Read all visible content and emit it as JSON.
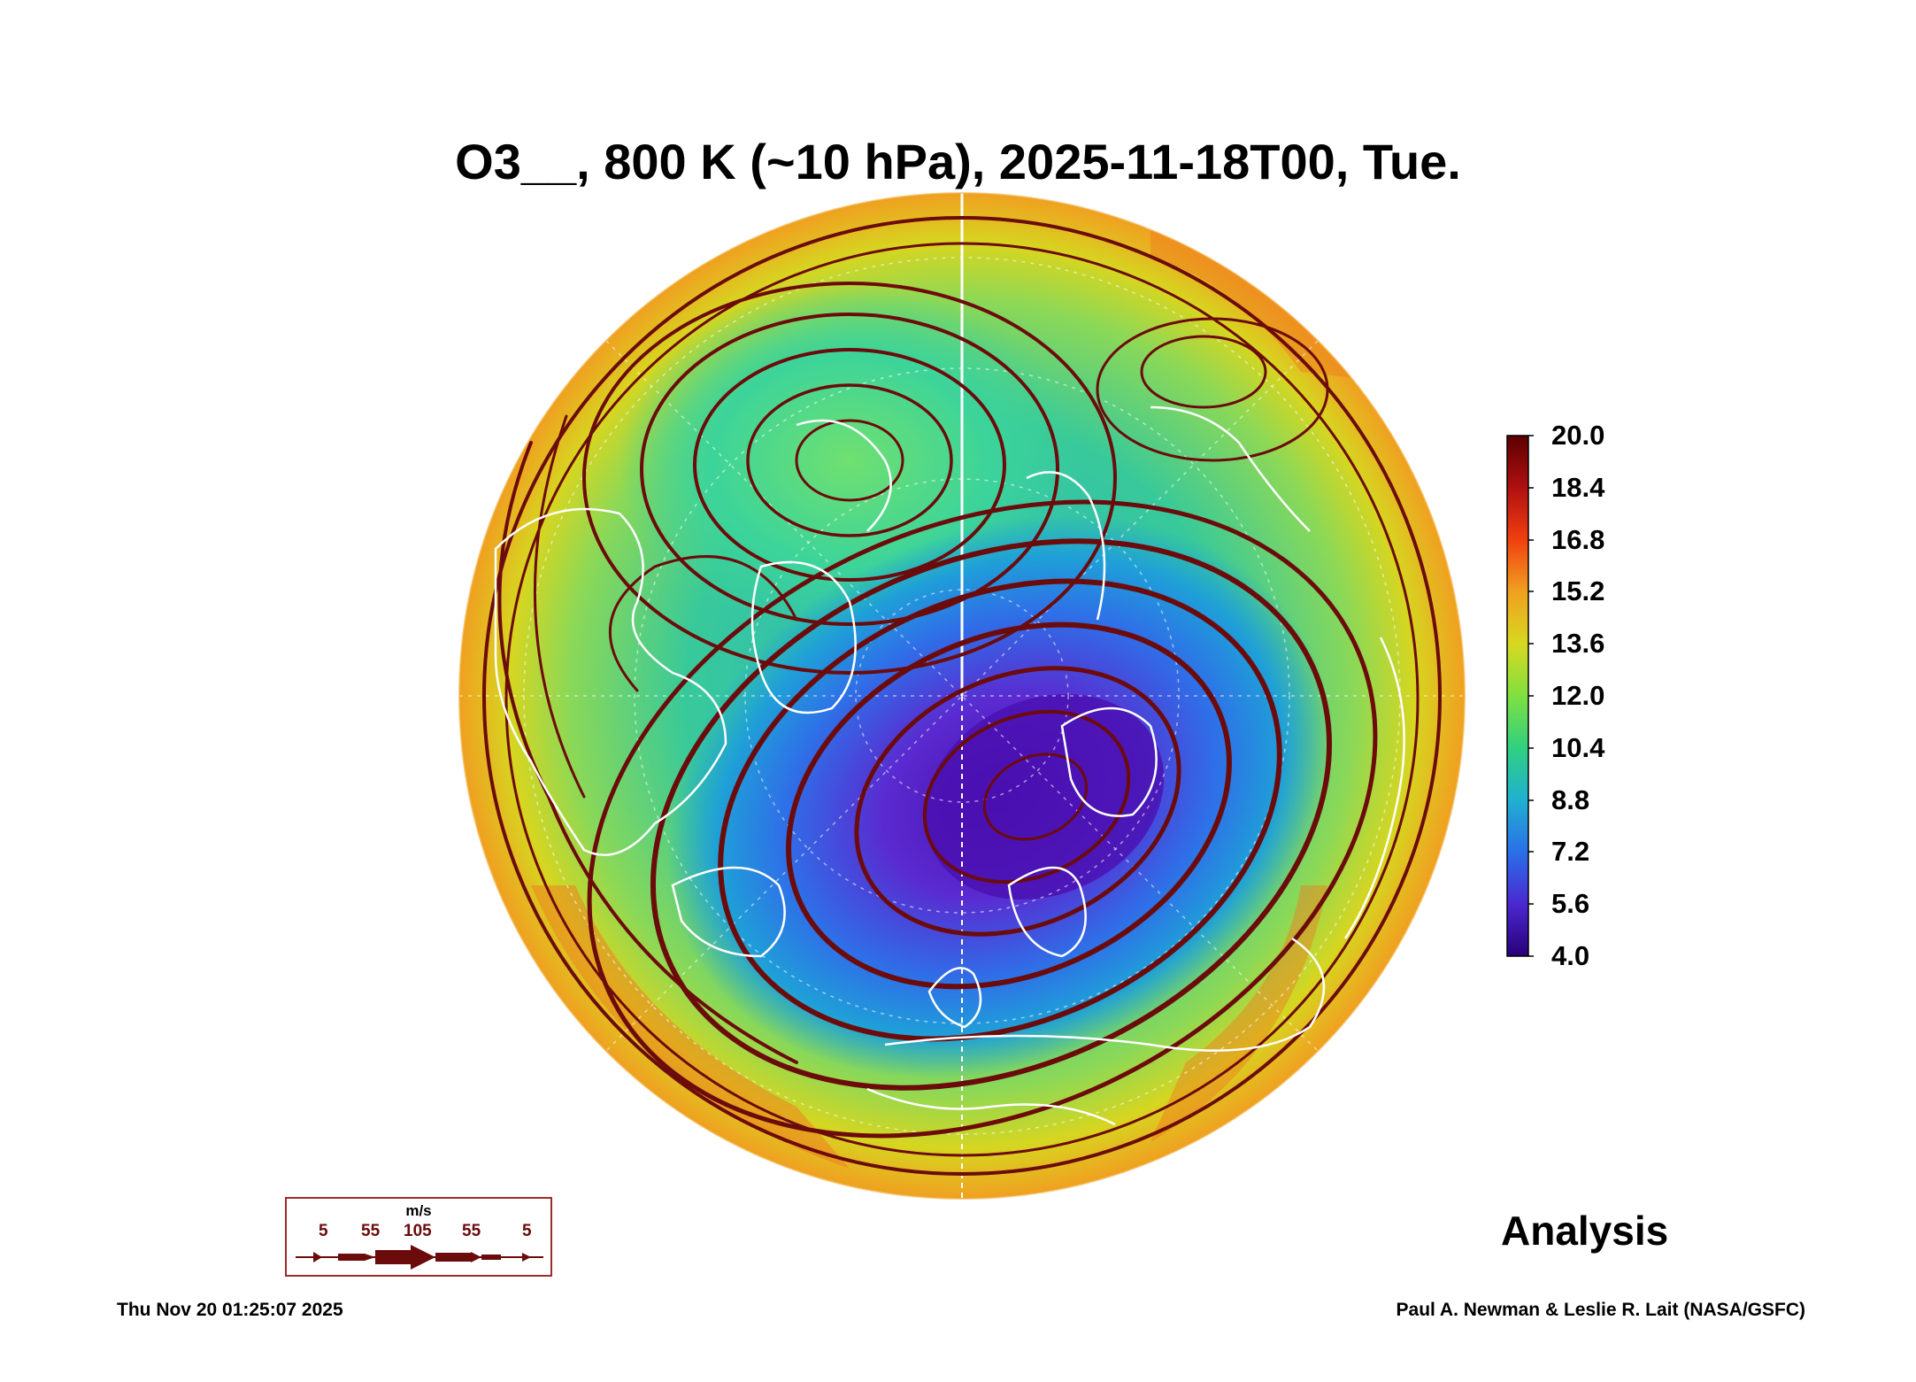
{
  "title": "O3__, 800 K (~10 hPa), 2025-11-18T00, Tue.",
  "colorbar": {
    "labels": [
      "20.0",
      "18.4",
      "16.8",
      "15.2",
      "13.6",
      "12.0",
      "10.4",
      "8.8",
      "7.2",
      "5.6",
      "4.0"
    ],
    "min": 4.0,
    "max": 20.0
  },
  "legend": {
    "unit": "m/s",
    "values": [
      "5",
      "55",
      "105",
      "55",
      "5"
    ]
  },
  "panel_label": "Analysis",
  "footer": {
    "timestamp": "Thu Nov 20 01:25:07 2025",
    "credit": "Paul A. Newman & Leslie R. Lait (NASA/GSFC)"
  },
  "colors": {
    "vortex_low": "#4a12b8",
    "mid_blue": "#2f7fe8",
    "green": "#3fd08a",
    "yellow": "#d8d820",
    "orange": "#f07a1e",
    "streamline": "#6b0b0b",
    "coastline": "#ffffff"
  }
}
